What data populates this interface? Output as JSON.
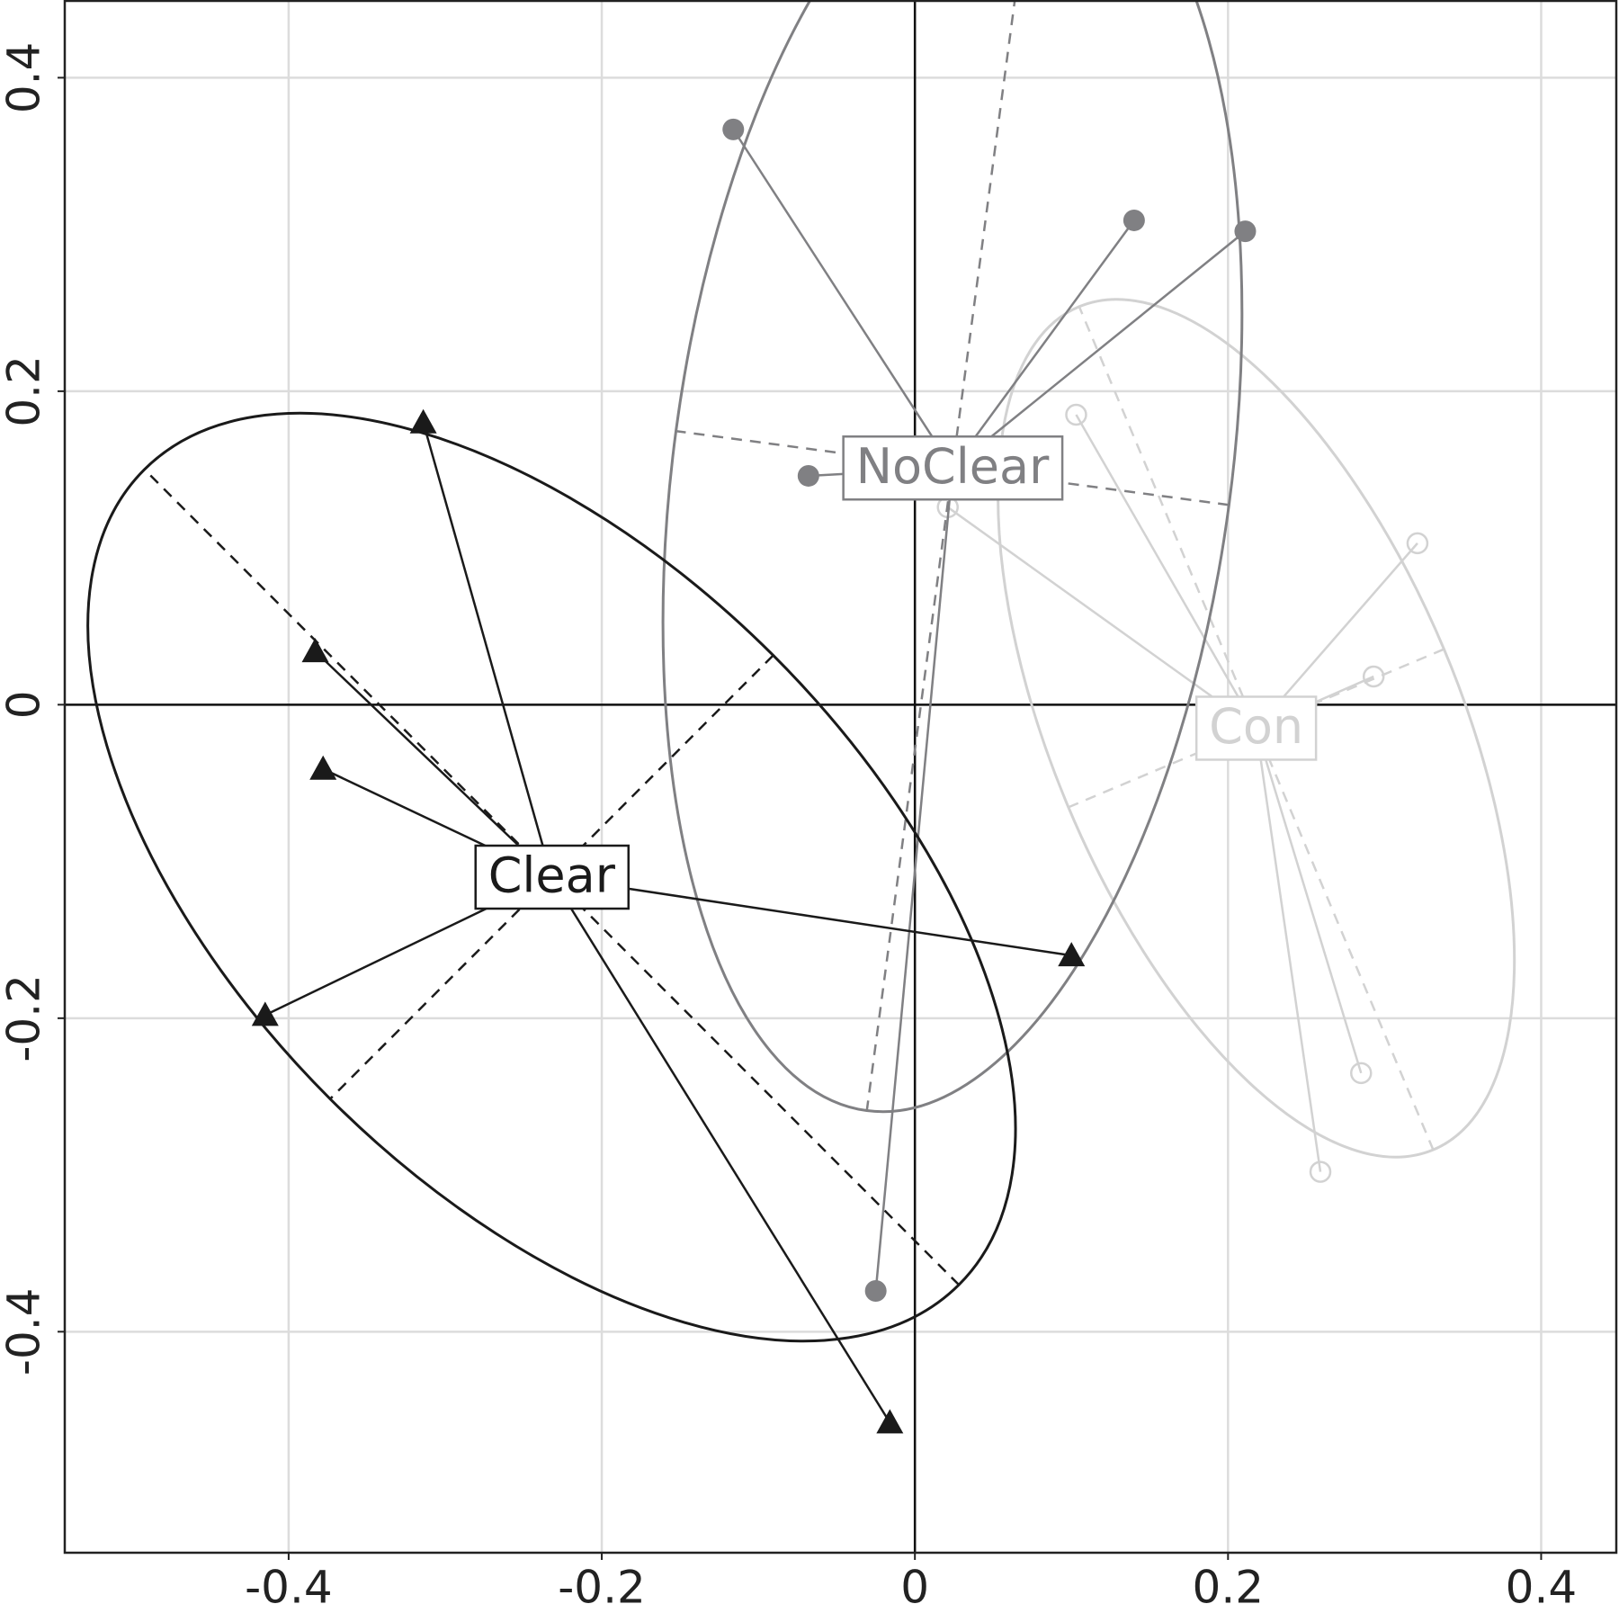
{
  "chart_data": {
    "type": "ordination",
    "xlim": [
      -0.543,
      0.448
    ],
    "ylim": [
      -0.541,
      0.449
    ],
    "xticks": [
      -0.4,
      -0.2,
      0,
      0.2,
      0.4
    ],
    "yticks": [
      -0.4,
      -0.2,
      0,
      0.2,
      0.4
    ],
    "grid": true,
    "series": [
      {
        "name": "Clear",
        "color": "#1a1a1a",
        "marker": "triangle",
        "x": [
          -0.314,
          -0.383,
          -0.378,
          -0.415,
          0.1,
          -0.016
        ],
        "y": [
          0.18,
          0.034,
          -0.041,
          -0.198,
          -0.16,
          -0.458
        ],
        "center": [
          -0.232,
          -0.11
        ],
        "radii": [
          0.368,
          0.2
        ],
        "angle": 135
      },
      {
        "name": "NoClear",
        "color": "#808083",
        "marker": "circle",
        "x": [
          -0.116,
          0.14,
          0.211,
          -0.068,
          -0.025
        ],
        "y": [
          0.367,
          0.309,
          0.302,
          0.146,
          -0.374
        ],
        "center": [
          0.024,
          0.151
        ],
        "radii": [
          0.414,
          0.178
        ],
        "angle": 82.4
      },
      {
        "name": "Con",
        "color": "#d2d2d2",
        "marker": "open-circle",
        "x": [
          0.103,
          0.321,
          0.293,
          0.285,
          0.259,
          0.021
        ],
        "y": [
          0.185,
          0.103,
          0.018,
          -0.235,
          -0.298,
          0.126
        ],
        "center": [
          0.218,
          -0.015
        ],
        "radii": [
          0.292,
          0.13
        ],
        "angle": 112.8
      }
    ]
  }
}
